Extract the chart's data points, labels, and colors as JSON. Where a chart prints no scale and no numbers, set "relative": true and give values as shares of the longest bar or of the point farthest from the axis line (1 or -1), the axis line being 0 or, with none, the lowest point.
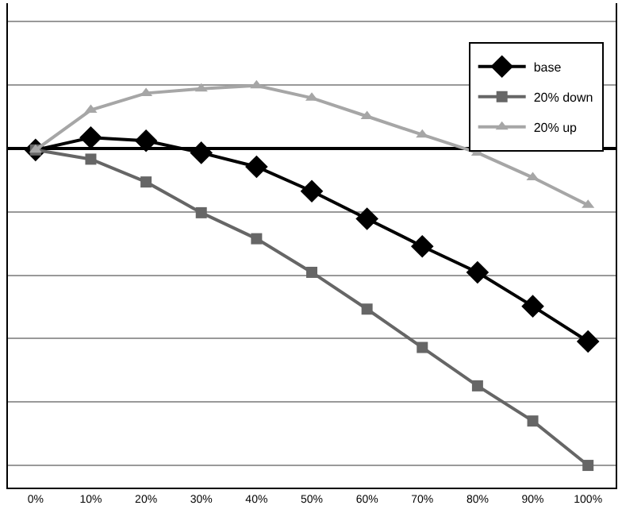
{
  "chart_data": {
    "type": "line",
    "relative": true,
    "grid": "y",
    "legend": "top right",
    "categories": [
      "0%",
      "10%",
      "20%",
      "30%",
      "40%",
      "50%",
      "60%",
      "70%",
      "80%",
      "90%",
      "100%"
    ],
    "series": [
      {
        "name": "base",
        "color": "#000000",
        "marker": "diamond",
        "values": [
          -0.005,
          0.034,
          0.024,
          -0.014,
          -0.058,
          -0.135,
          -0.222,
          -0.309,
          -0.391,
          -0.498,
          -0.609
        ]
      },
      {
        "name": "20% down",
        "color": "#666666",
        "marker": "square",
        "values": [
          -0.005,
          -0.034,
          -0.106,
          -0.203,
          -0.285,
          -0.391,
          -0.507,
          -0.628,
          -0.749,
          -0.86,
          -1
        ]
      },
      {
        "name": "20% up",
        "color": "#a6a6a6",
        "marker": "triangle",
        "values": [
          -0.005,
          0.121,
          0.174,
          0.188,
          0.198,
          0.159,
          0.101,
          0.043,
          -0.014,
          -0.092,
          -0.179
        ]
      }
    ]
  }
}
